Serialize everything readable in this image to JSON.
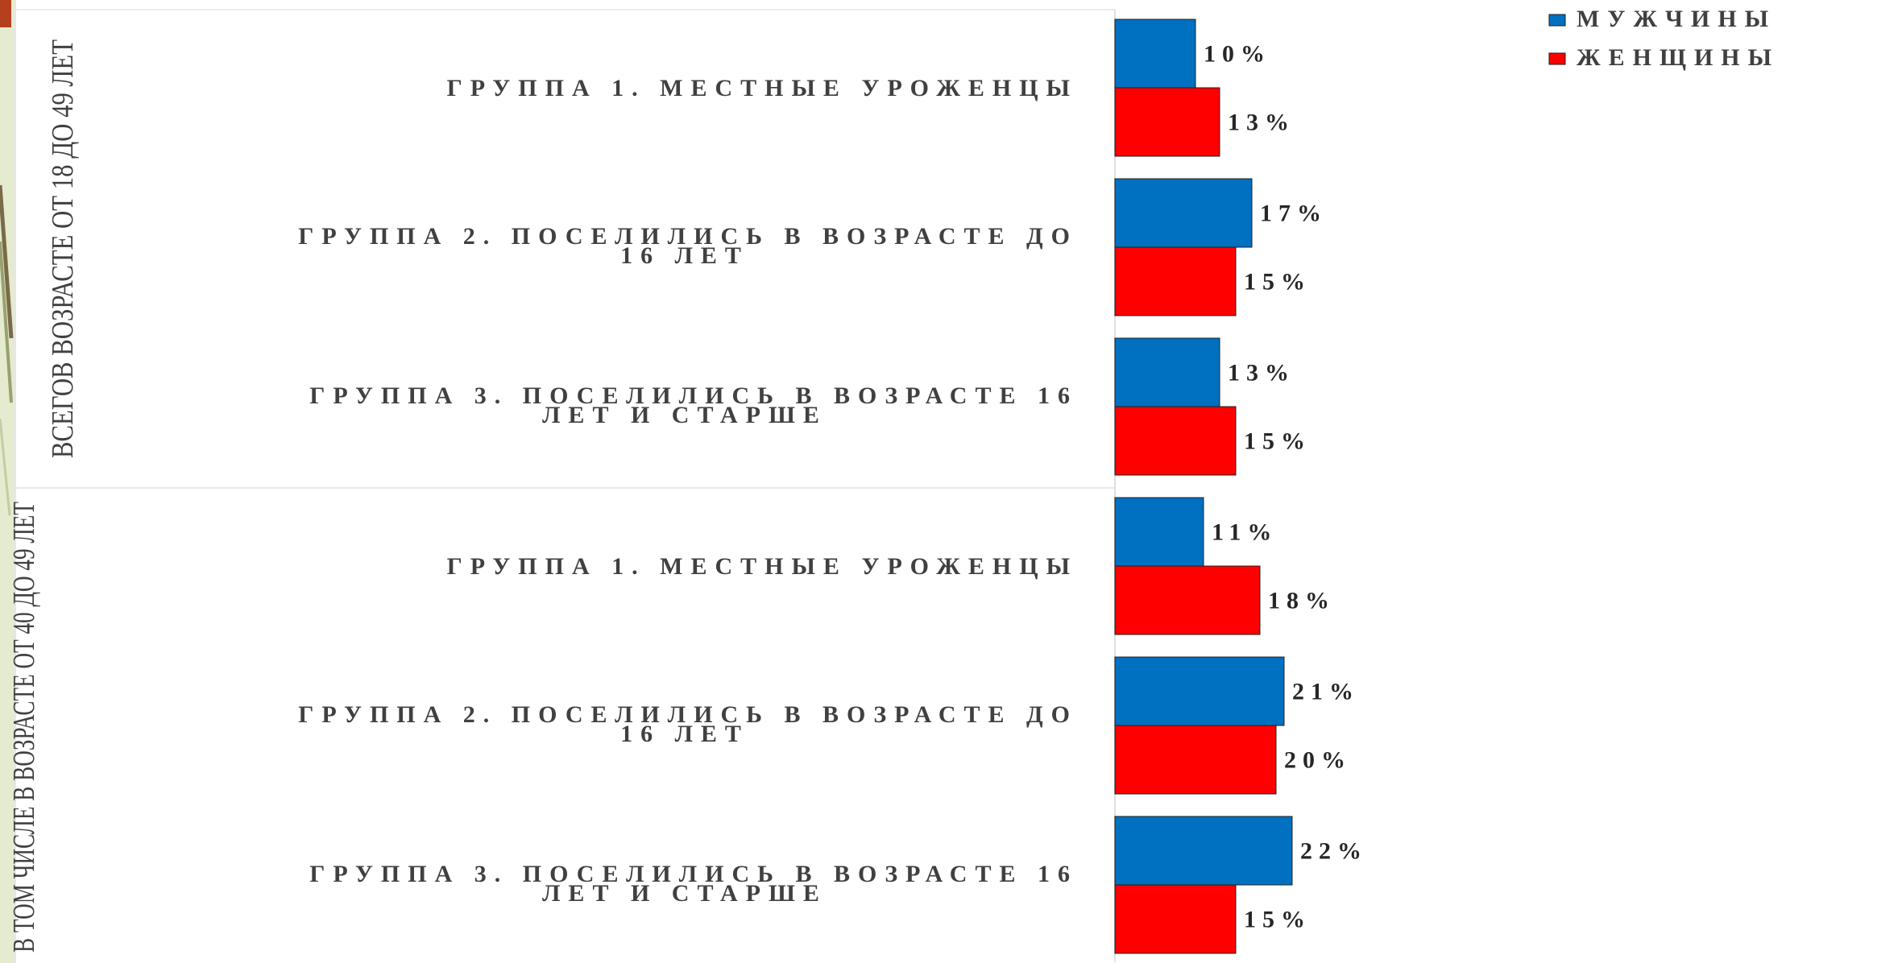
{
  "chart_data": {
    "type": "bar",
    "orientation": "horizontal",
    "groups": [
      {
        "label": "ВСЕГОВ ВОЗРАСТЕ ОТ 18 ДО 49 ЛЕТ",
        "categories": [
          "ГРУППА 1. МЕСТНЫЕ УРОЖЕНЦЫ",
          "ГРУППА 2. ПОСЕЛИЛИСЬ В ВОЗРАСТЕ ДО 16 ЛЕТ",
          "ГРУППА 3. ПОСЕЛИЛИСЬ В ВОЗРАСТЕ 16 ЛЕТ И СТАРШЕ"
        ],
        "values_men": [
          10,
          17,
          13
        ],
        "values_women": [
          13,
          15,
          15
        ]
      },
      {
        "label": "В ТОМ ЧИСЛЕ В ВОЗРАСТЕ ОТ 40 ДО 49 ЛЕТ",
        "categories": [
          "ГРУППА 1. МЕСТНЫЕ УРОЖЕНЦЫ",
          "ГРУППА 2. ПОСЕЛИЛИСЬ В ВОЗРАСТЕ ДО 16 ЛЕТ",
          "ГРУППА 3. ПОСЕЛИЛИСЬ В ВОЗРАСТЕ 16 ЛЕТ И СТАРШЕ"
        ],
        "values_men": [
          11,
          21,
          22
        ],
        "values_women": [
          18,
          20,
          15
        ]
      }
    ],
    "series": [
      {
        "name": "МУЖЧИНЫ",
        "color": "#0070C0"
      },
      {
        "name": "ЖЕНЩИНЫ",
        "color": "#FF0000"
      }
    ],
    "value_suffix": "%",
    "xlim": [
      0,
      100
    ],
    "grid": false,
    "legend_position": "top-right"
  }
}
